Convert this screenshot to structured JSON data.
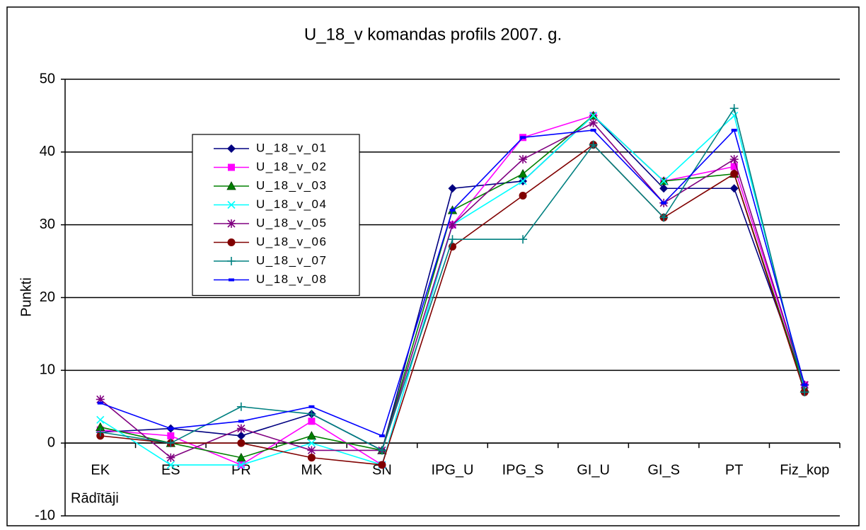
{
  "chart_data": {
    "type": "line",
    "title": "U_18_v komandas profils 2007. g.",
    "y_label": "Punkti",
    "x_label": "Rādītāji",
    "categories": [
      "EK",
      "ES",
      "PR",
      "MK",
      "SN",
      "IPG_U",
      "IPG_S",
      "GI_U",
      "GI_S",
      "PT",
      "Fiz_kop"
    ],
    "ylim": [
      -10,
      50
    ],
    "yticks": [
      -10,
      0,
      10,
      20,
      30,
      40,
      50
    ],
    "grid": true,
    "series": [
      {
        "name": "U_18_v_01",
        "color": "#000080",
        "marker": "diamond",
        "values": [
          1.5,
          2,
          1,
          4,
          -1,
          35,
          36,
          45,
          35,
          35,
          8
        ]
      },
      {
        "name": "U_18_v_02",
        "color": "#ff00ff",
        "marker": "square",
        "values": [
          1.8,
          1,
          -3,
          3,
          -3,
          30,
          42,
          45,
          36,
          38,
          8
        ]
      },
      {
        "name": "U_18_v_03",
        "color": "#008000",
        "marker": "triangle",
        "values": [
          2.2,
          0,
          -2,
          1,
          -1,
          32,
          37,
          45,
          36,
          37,
          7.5
        ]
      },
      {
        "name": "U_18_v_04",
        "color": "#00ffff",
        "marker": "x",
        "values": [
          3.2,
          -3,
          -3,
          0,
          -3,
          30,
          36,
          45,
          36,
          45,
          7.5
        ]
      },
      {
        "name": "U_18_v_05",
        "color": "#800080",
        "marker": "star",
        "values": [
          6,
          -2,
          2,
          -1,
          -1,
          30,
          39,
          44,
          33,
          39,
          8
        ]
      },
      {
        "name": "U_18_v_06",
        "color": "#800000",
        "marker": "circle",
        "values": [
          1,
          0,
          0,
          -2,
          -3,
          27,
          34,
          41,
          31,
          37,
          7
        ]
      },
      {
        "name": "U_18_v_07",
        "color": "#008080",
        "marker": "plus",
        "values": [
          1.5,
          0,
          5,
          4,
          -1,
          28,
          28,
          41,
          31,
          46,
          7
        ]
      },
      {
        "name": "U_18_v_08",
        "color": "#0000ff",
        "marker": "dash",
        "values": [
          5.5,
          2,
          3,
          5,
          1,
          32,
          42,
          43,
          33,
          43,
          8
        ]
      }
    ]
  }
}
